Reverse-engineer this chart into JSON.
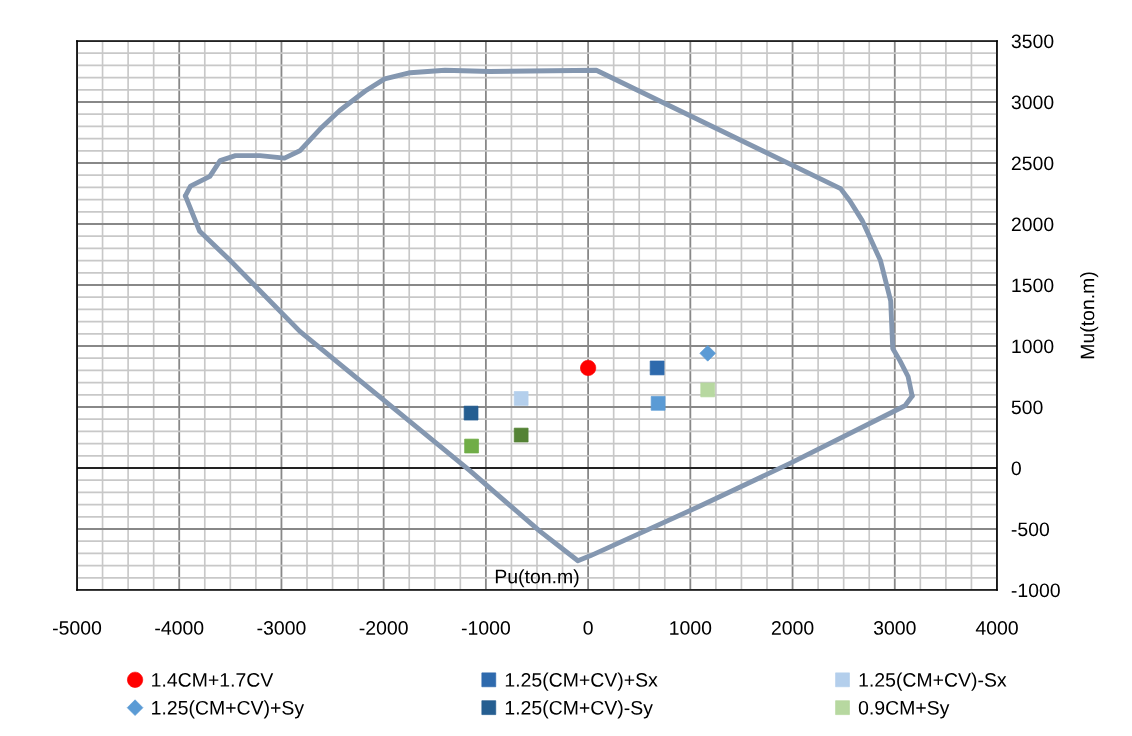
{
  "chart_data": {
    "type": "scatter",
    "xlabel": "Pu(ton.m)",
    "ylabel": "Mu(ton.m)",
    "xlim": [
      -5000,
      4000
    ],
    "xticks": [
      -5000,
      {
        "value": -4750,
        "label": null
      },
      {
        "value": -4500,
        "label": null
      },
      {
        "value": -4250,
        "label": null
      },
      -4000,
      {
        "value": -3750,
        "label": null
      },
      {
        "value": -3500,
        "label": null
      },
      {
        "value": -3250,
        "label": null
      },
      -3000,
      {
        "value": -2750,
        "label": null
      },
      {
        "value": -2500,
        "label": null
      },
      {
        "value": -2250,
        "label": null
      },
      -2000,
      {
        "value": -1750,
        "label": null
      },
      {
        "value": -1500,
        "label": null
      },
      {
        "value": -1250,
        "label": null
      },
      -1000,
      {
        "value": -750,
        "label": null
      },
      {
        "value": -500,
        "label": null
      },
      {
        "value": -250,
        "label": null
      },
      0,
      {
        "value": 250,
        "label": null
      },
      {
        "value": 500,
        "label": null
      },
      {
        "value": 750,
        "label": null
      },
      1000,
      {
        "value": 1250,
        "label": null
      },
      {
        "value": 1500,
        "label": null
      },
      {
        "value": 1750,
        "label": null
      },
      2000,
      {
        "value": 2250,
        "label": null
      },
      {
        "value": 2500,
        "label": null
      },
      {
        "value": 2750,
        "label": null
      },
      3000,
      {
        "value": 3250,
        "label": null
      },
      {
        "value": 3500,
        "label": null
      },
      {
        "value": 3750,
        "label": null
      },
      4000
    ],
    "ylim": [
      -1000,
      3500
    ],
    "yticks": [
      -1000,
      {
        "value": -900,
        "label": null
      },
      {
        "value": -800,
        "label": null
      },
      {
        "value": -700,
        "label": null
      },
      {
        "value": -600,
        "label": null
      },
      -500,
      {
        "value": -400,
        "label": null
      },
      {
        "value": -300,
        "label": null
      },
      {
        "value": -200,
        "label": null
      },
      {
        "value": -100,
        "label": null
      },
      0,
      {
        "value": 100,
        "label": null
      },
      {
        "value": 200,
        "label": null
      },
      {
        "value": 300,
        "label": null
      },
      {
        "value": 400,
        "label": null
      },
      500,
      {
        "value": 600,
        "label": null
      },
      {
        "value": 700,
        "label": null
      },
      {
        "value": 800,
        "label": null
      },
      {
        "value": 900,
        "label": null
      },
      1000,
      {
        "value": 1100,
        "label": null
      },
      {
        "value": 1200,
        "label": null
      },
      {
        "value": 1300,
        "label": null
      },
      {
        "value": 1400,
        "label": null
      },
      1500,
      {
        "value": 1600,
        "label": null
      },
      {
        "value": 1700,
        "label": null
      },
      {
        "value": 1800,
        "label": null
      },
      {
        "value": 1900,
        "label": null
      },
      2000,
      {
        "value": 2100,
        "label": null
      },
      {
        "value": 2200,
        "label": null
      },
      {
        "value": 2300,
        "label": null
      },
      {
        "value": 2400,
        "label": null
      },
      2500,
      {
        "value": 2600,
        "label": null
      },
      {
        "value": 2700,
        "label": null
      },
      {
        "value": 2800,
        "label": null
      },
      {
        "value": 2900,
        "label": null
      },
      3000,
      {
        "value": 3100,
        "label": null
      },
      {
        "value": 3200,
        "label": null
      },
      {
        "value": 3300,
        "label": null
      },
      {
        "value": 3400,
        "label": null
      },
      3500
    ],
    "grid": true,
    "legend": "bottom",
    "ref_lines": [
      {
        "axis": "y",
        "value": 0,
        "color": "#000000"
      }
    ],
    "series": [
      {
        "type": "line",
        "color": "#8497b0",
        "marker": "none",
        "line_style": "solid",
        "x": [
          -3940,
          -3890,
          -3700,
          -3600,
          -3450,
          -3210,
          -2970,
          -2820,
          -2620,
          -2430,
          -2180,
          -1990,
          -1740,
          -1400,
          -960,
          80,
          2470,
          2560,
          2680,
          2860,
          2960,
          2980,
          3050,
          3130,
          3170
        ],
        "values": [
          2230,
          2310,
          2390,
          2520,
          2560,
          2560,
          2540,
          2600,
          2780,
          2930,
          3090,
          3190,
          3240,
          3260,
          3250,
          3260,
          2290,
          2190,
          2030,
          1700,
          1370,
          980,
          880,
          750,
          590
        ]
      },
      {
        "type": "line",
        "color": "#8497b0",
        "marker": "none",
        "line_style": "solid",
        "x": [
          -3940,
          -3800,
          -3500,
          -2820,
          -1160,
          -470,
          -100,
          20,
          1100,
          1980,
          2910,
          3100,
          3170
        ],
        "values": [
          2230,
          1940,
          1700,
          1120,
          -20,
          -520,
          -760,
          -720,
          -310,
          40,
          430,
          510,
          590
        ]
      },
      {
        "name": "1.4CM+1.7CV",
        "color": "#ff0000",
        "marker": "circle",
        "x": [
          0
        ],
        "values": [
          820
        ]
      },
      {
        "name": "1.25(CM+CV)+Sx",
        "color": "#2e6aad",
        "marker": "square",
        "x": [
          675
        ],
        "values": [
          820
        ]
      },
      {
        "name": "1.25(CM+CV)-Sx",
        "color": "#b4cfec",
        "marker": "square",
        "x": [
          -655
        ],
        "values": [
          570
        ]
      },
      {
        "name": "1.25(CM+CV)+Sy",
        "color": "#5b9bd5",
        "marker": "diamond",
        "x": [
          1170
        ],
        "values": [
          940
        ]
      },
      {
        "name": "1.25(CM+CV)-Sy",
        "color": "#255e91",
        "marker": "square",
        "x": [
          -1145
        ],
        "values": [
          450
        ]
      },
      {
        "name": "0.9CM+Sy",
        "color": "#b7d8a0",
        "marker": "square",
        "x": [
          1170
        ],
        "values": [
          640
        ]
      },
      {
        "color": "#70ad47",
        "marker": "square",
        "x": [
          -1140
        ],
        "values": [
          180
        ]
      },
      {
        "color": "#5b9bd5",
        "marker": "square",
        "x": [
          685
        ],
        "values": [
          530
        ]
      },
      {
        "color": "#548235",
        "marker": "square",
        "x": [
          -655
        ],
        "values": [
          270
        ]
      }
    ]
  }
}
